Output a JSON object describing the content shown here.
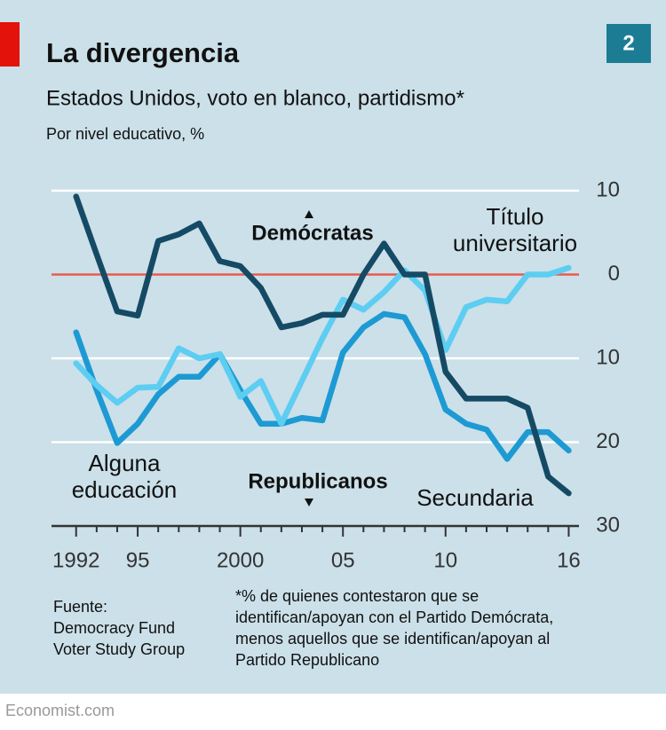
{
  "brand": "Economist.com",
  "chart_number": "2",
  "source": [
    "Fuente:",
    "Democracy Fund",
    "Voter Study Group"
  ],
  "footnote": [
    "*% de quienes contestaron que se",
    "identifican/apoyan con el Partido Demócrata,",
    "menos aquellos que se identifican/apoyan al",
    "Partido Republicano"
  ],
  "chart_data": {
    "type": "line",
    "title": "La divergencia",
    "subtitle": "Estados Unidos, voto en blanco, partidismo*",
    "unit_label": "Por nivel educativo, %",
    "annotations": {
      "up": "Demócratas",
      "down": "Republicanos"
    },
    "x": [
      1992,
      1993,
      1994,
      1995,
      1996,
      1997,
      1998,
      1999,
      2000,
      2001,
      2002,
      2003,
      2004,
      2005,
      2006,
      2007,
      2008,
      2009,
      2010,
      2011,
      2012,
      2013,
      2014,
      2015,
      2016
    ],
    "series": [
      {
        "name": "Alguna educación",
        "color": "#1d9ad3",
        "values": [
          -6.9,
          -13.8,
          -20.1,
          -17.8,
          -14.3,
          -12.2,
          -12.2,
          -9.5,
          -13.8,
          -17.8,
          -17.8,
          -17.1,
          -17.4,
          -9.3,
          -6.3,
          -4.7,
          -5.1,
          -9.5,
          -16.1,
          -17.8,
          -18.5,
          -22,
          -18.8,
          -18.8,
          -21
        ]
      },
      {
        "name": "Título universitario",
        "color": "#5ecdf2",
        "values": [
          -10.6,
          -13.2,
          -15.3,
          -13.5,
          -13.4,
          -8.8,
          -10,
          -9.5,
          -14.6,
          -12.7,
          -17.8,
          -12.7,
          -7.6,
          -3,
          -4.2,
          -2.1,
          0.5,
          -1.9,
          -9,
          -3.9,
          -3,
          -3.2,
          0,
          0,
          0.8
        ]
      },
      {
        "name": "Secundaria",
        "color": "#154a65",
        "values": [
          9.3,
          2.4,
          -4.4,
          -4.9,
          4,
          4.8,
          6.1,
          1.6,
          1,
          -1.6,
          -6.3,
          -5.8,
          -4.8,
          -4.8,
          0,
          3.7,
          0,
          0,
          -11.6,
          -14.8,
          -14.8,
          -14.8,
          -15.9,
          -24.1,
          -26.1
        ]
      }
    ],
    "xlim": [
      1990.8,
      2016.5
    ],
    "xticks": [
      1992,
      {
        "value": 1995,
        "label": "95"
      },
      2000,
      {
        "value": 2005,
        "label": "05"
      },
      {
        "value": 2010,
        "label": "10"
      },
      {
        "value": 2016,
        "label": "16"
      }
    ],
    "xticks_minor": [
      1993,
      1994,
      1996,
      1997,
      1998,
      1999,
      2001,
      2002,
      2003,
      2004,
      2006,
      2007,
      2008,
      2009,
      2011,
      2012,
      2013,
      2014,
      2015
    ],
    "ylim": [
      -30,
      10
    ],
    "yticks": [
      10,
      0,
      {
        "value": -10,
        "label": "10"
      },
      {
        "value": -20,
        "label": "20"
      },
      {
        "value": -30,
        "label": "30"
      }
    ],
    "grid": true,
    "zero_line_color": "#ea5a50"
  }
}
